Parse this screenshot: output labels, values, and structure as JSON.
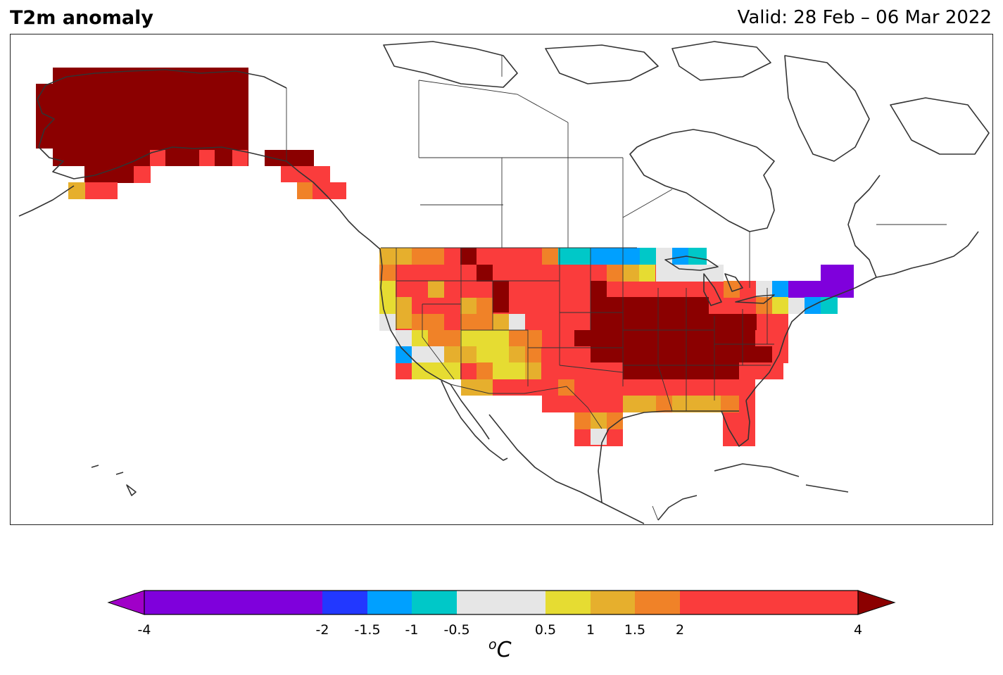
{
  "header": {
    "title": "T2m anomaly",
    "valid": "Valid: 28 Feb – 06 Mar 2022"
  },
  "legend": {
    "unit_base": "C",
    "unit_sup": "o",
    "bins": [
      {
        "from": -4,
        "to": -2,
        "color": "#7f00dc"
      },
      {
        "from": -2,
        "to": -1.5,
        "color": "#2238ff"
      },
      {
        "from": -1.5,
        "to": -1,
        "color": "#00a0ff"
      },
      {
        "from": -1,
        "to": -0.5,
        "color": "#00c8c8"
      },
      {
        "from": -0.5,
        "to": 0.5,
        "color": "#e6e6e6"
      },
      {
        "from": 0.5,
        "to": 1,
        "color": "#e6dc32"
      },
      {
        "from": 1,
        "to": 1.5,
        "color": "#e6af2d"
      },
      {
        "from": 1.5,
        "to": 2,
        "color": "#f08228"
      },
      {
        "from": 2,
        "to": 4,
        "color": "#fa3c3c"
      }
    ],
    "under_color": "#a000c8",
    "over_color": "#8b0000",
    "ticks": [
      "-4",
      "-2",
      "-1.5",
      "-1",
      "-0.5",
      "0.5",
      "1",
      "1.5",
      "2",
      "4"
    ]
  },
  "colors": {
    "coast": "#333333",
    "border": "#333333",
    "frame": "#222222"
  }
}
